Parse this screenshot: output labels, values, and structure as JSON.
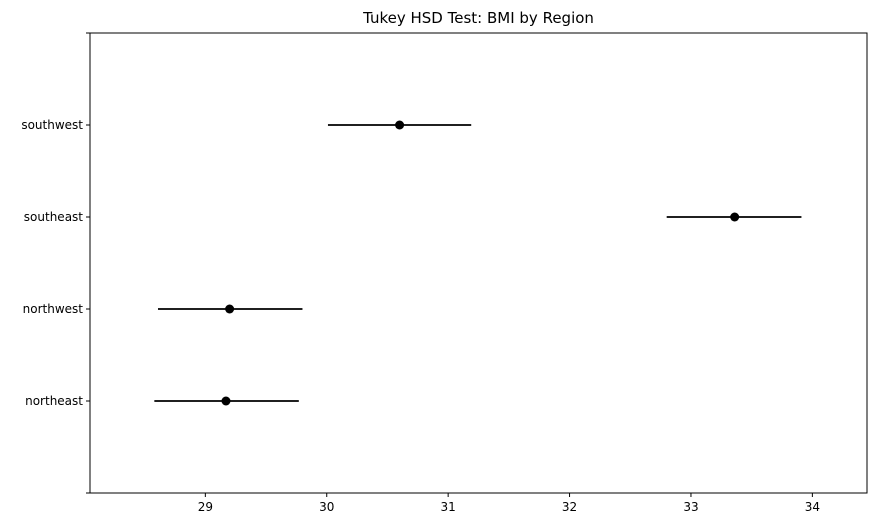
{
  "chart_data": {
    "type": "scatter",
    "title": "Tukey HSD Test: BMI by Region",
    "xlabel": "",
    "ylabel": "",
    "xlim": [
      28.05,
      34.45
    ],
    "xticks": [
      29,
      30,
      31,
      32,
      33,
      34
    ],
    "grid": false,
    "categories": [
      "northeast",
      "northwest",
      "southeast",
      "southwest"
    ],
    "series": [
      {
        "values": [
          {
            "category": "northeast",
            "mean": 29.17,
            "lower": 28.58,
            "upper": 29.77
          },
          {
            "category": "northwest",
            "mean": 29.2,
            "lower": 28.61,
            "upper": 29.8
          },
          {
            "category": "southeast",
            "mean": 33.36,
            "lower": 32.8,
            "upper": 33.91
          },
          {
            "category": "southwest",
            "mean": 30.6,
            "lower": 30.01,
            "upper": 31.19
          }
        ]
      }
    ],
    "colors": {
      "marker": "#000000",
      "interval": "#000000",
      "axes": "#000000"
    }
  }
}
